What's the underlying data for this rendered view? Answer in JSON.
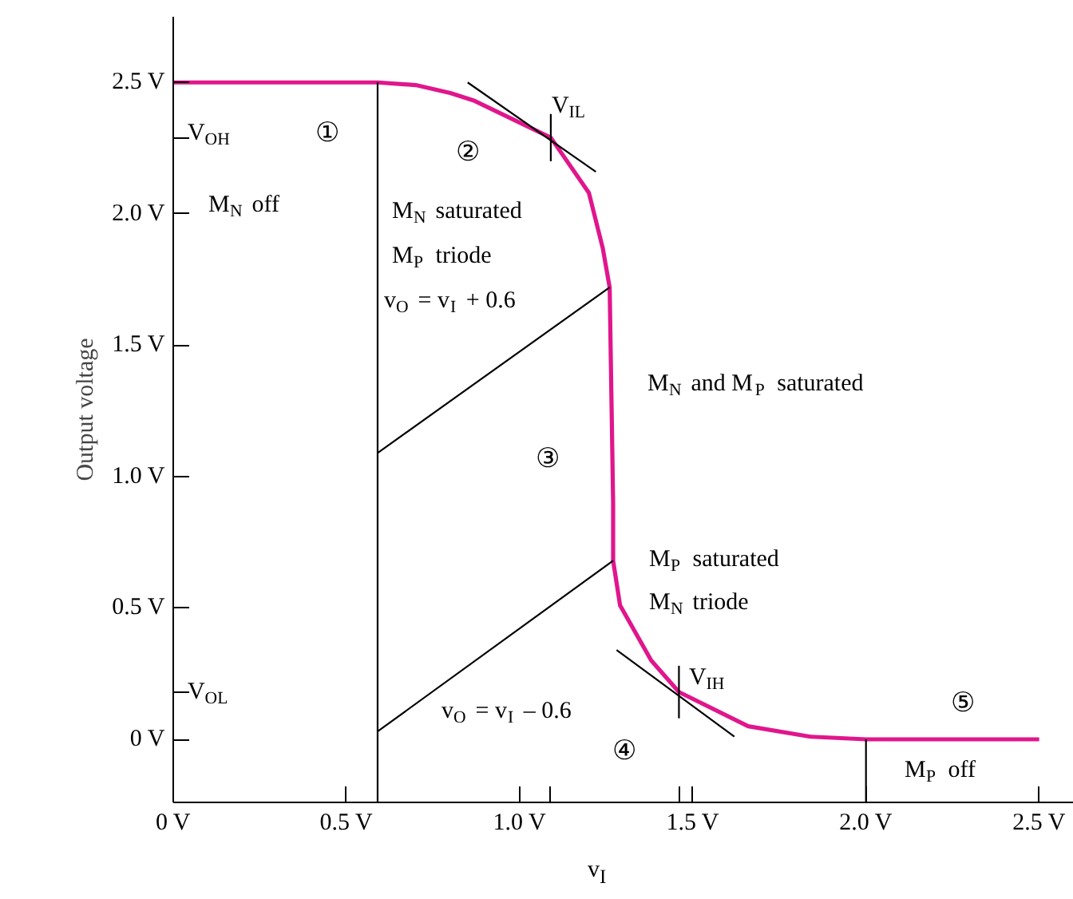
{
  "chart_data": {
    "type": "line",
    "xlabel": "v$_{I}$",
    "ylabel": "Output voltage",
    "xlim": [
      0,
      2.6
    ],
    "ylim": [
      -0.24,
      2.75
    ],
    "xticks": [
      {
        "value": 0,
        "label": "0 V"
      },
      {
        "value": 0.5,
        "label": "0.5 V"
      },
      {
        "value": 1.0,
        "label": "1.0 V"
      },
      {
        "value": 1.5,
        "label": "1.5 V"
      },
      {
        "value": 2.0,
        "label": "2.0 V"
      },
      {
        "value": 2.5,
        "label": "2.5 V"
      },
      {
        "value": 1.09,
        "label": null
      },
      {
        "value": 1.46,
        "label": null
      }
    ],
    "yticks": [
      {
        "value": 0,
        "label": "0 V"
      },
      {
        "value": 0.5,
        "label": "0.5 V"
      },
      {
        "value": 1.0,
        "label": "1.0 V"
      },
      {
        "value": 1.5,
        "label": "1.5 V"
      },
      {
        "value": 2.0,
        "label": "2.0 V"
      },
      {
        "value": 2.5,
        "label": "2.5 V"
      },
      {
        "value": 2.29,
        "label": null
      },
      {
        "value": 0.18,
        "label": null
      }
    ],
    "grid": false,
    "marker": "none",
    "line_style": "solid",
    "series": [
      {
        "color": "#e0168c",
        "x": [
          0,
          0.59,
          0.7,
          0.8,
          0.87,
          1.09,
          1.2,
          1.24,
          1.26,
          1.27,
          1.27,
          1.29,
          1.38,
          1.46,
          1.66,
          1.84,
          2.0,
          2.5
        ],
        "values": [
          2.5,
          2.5,
          2.49,
          2.46,
          2.43,
          2.29,
          2.08,
          1.87,
          1.72,
          0.9,
          0.68,
          0.51,
          0.3,
          0.18,
          0.05,
          0.01,
          0,
          0
        ]
      },
      {
        "color": "#000000",
        "x": [
          0.59,
          0.59
        ],
        "values": [
          -0.24,
          2.5
        ]
      },
      {
        "color": "#000000",
        "x": [
          0.59,
          1.26
        ],
        "values": [
          1.09,
          1.72
        ]
      },
      {
        "color": "#000000",
        "x": [
          0.59,
          1.27
        ],
        "values": [
          0.03,
          0.68
        ]
      },
      {
        "color": "#000000",
        "x": [
          2.0,
          2.0
        ],
        "values": [
          -0.24,
          0
        ]
      },
      {
        "color": "#000000",
        "x": [
          0.85,
          1.22
        ],
        "values": [
          2.5,
          2.16
        ]
      },
      {
        "color": "#000000",
        "x": [
          1.28,
          1.62
        ],
        "values": [
          0.34,
          0.01
        ]
      },
      {
        "color": "#000000",
        "x": [
          1.09,
          1.09
        ],
        "values": [
          2.2,
          2.38
        ]
      },
      {
        "color": "#000000",
        "x": [
          1.46,
          1.46
        ],
        "values": [
          0.08,
          0.28
        ]
      }
    ],
    "annotations": [
      "V$_{OH}$",
      "①",
      "M$_{N}$ off",
      "②",
      "V$_{IL}$",
      "M$_{N}$ saturated",
      "M$_{P}$ triode",
      "v$_{O}$ = v$_{I}$ + 0.6",
      "M$_{N}$ and M$_{P}$ saturated",
      "③",
      "M$_{P}$ saturated",
      "M$_{N}$ triode",
      "V$_{IH}$",
      "V$_{OL}$",
      "v$_{O}$ = v$_{I}$ – 0.6",
      "④",
      "⑤",
      "M$_{P}$ off"
    ]
  }
}
